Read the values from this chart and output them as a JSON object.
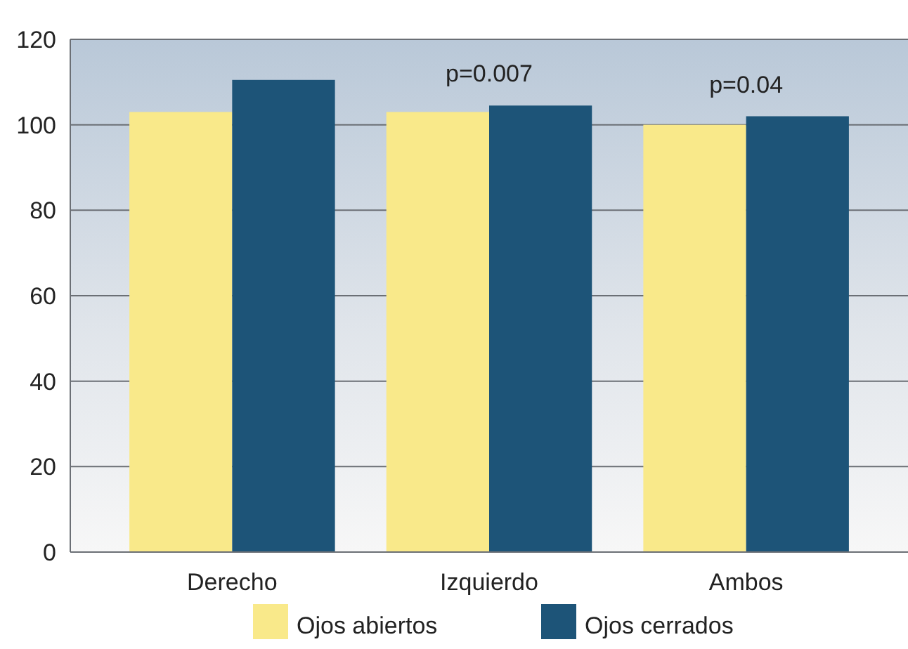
{
  "chart_data": {
    "type": "bar",
    "categories": [
      "Derecho",
      "Izquierdo",
      "Ambos"
    ],
    "series": [
      {
        "name": "Ojos abiertos",
        "color": "#f9e98a",
        "values": [
          103,
          103,
          100
        ]
      },
      {
        "name": "Ojos cerrados",
        "color": "#1d5478",
        "values": [
          110.5,
          104.5,
          102
        ]
      }
    ],
    "ylim": [
      0,
      120
    ],
    "yticks": [
      0,
      20,
      40,
      60,
      80,
      100,
      120
    ],
    "grid": "y",
    "legend": "bottom",
    "annotations": [
      {
        "text": "p=0.007",
        "x": "Izquierdo",
        "y": 104.5
      },
      {
        "text": "p=0.04",
        "x": "Ambos",
        "y": 102
      }
    ]
  }
}
